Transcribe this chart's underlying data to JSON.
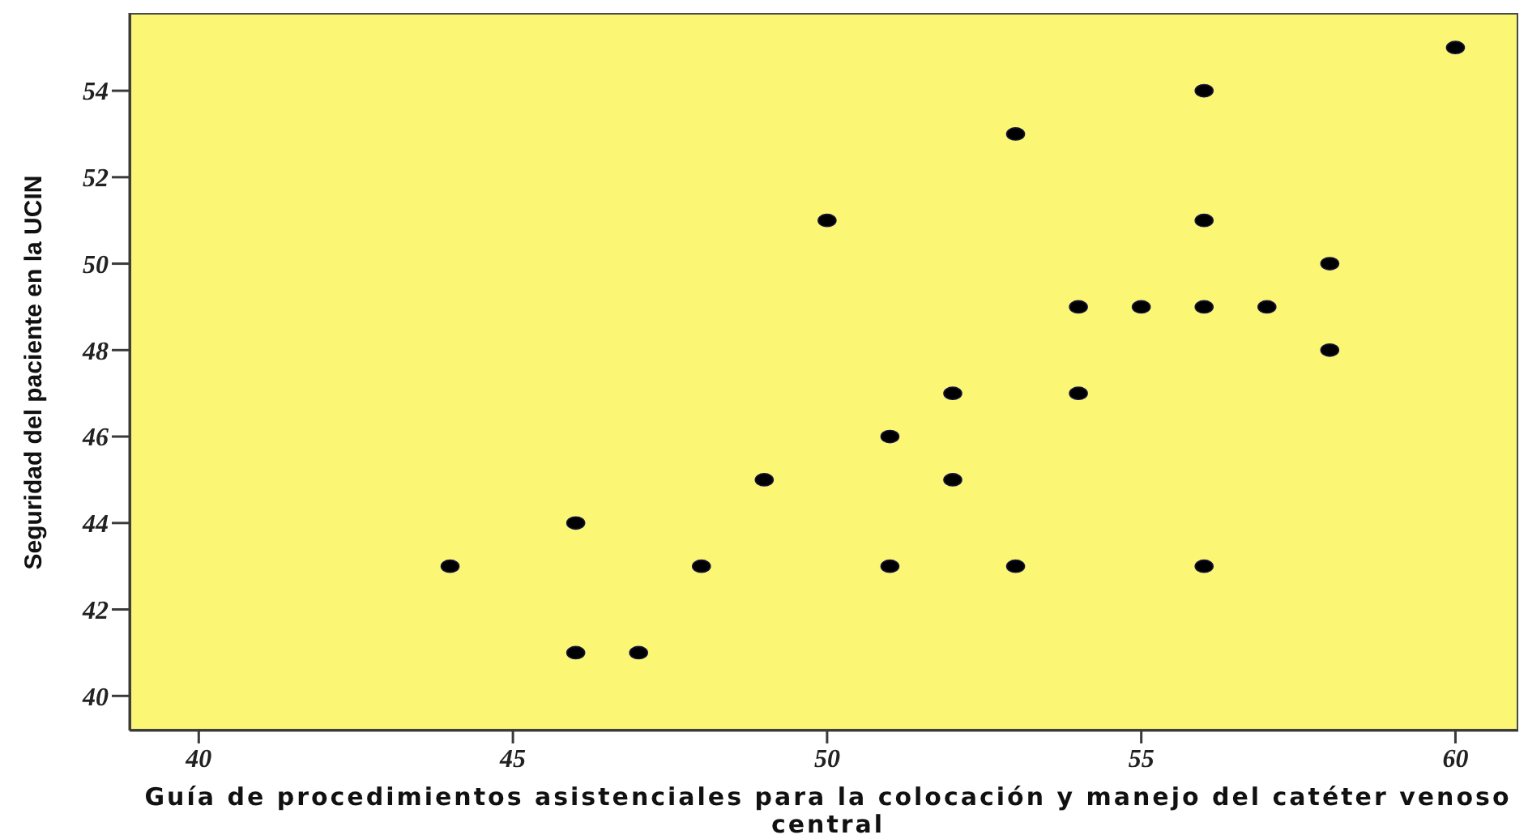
{
  "chart_data": {
    "type": "scatter",
    "xlabel": "Guía de procedimientos asistenciales para la colocación y manejo del catéter venoso central",
    "ylabel": "Seguridad del paciente en la UCIN",
    "x": [
      44,
      46,
      46,
      47,
      48,
      49,
      50,
      51,
      51,
      52,
      52,
      53,
      53,
      54,
      54,
      55,
      56,
      56,
      56,
      56,
      57,
      58,
      58,
      60
    ],
    "values": [
      43,
      44,
      41,
      41,
      43,
      45,
      51,
      46,
      43,
      47,
      45,
      53,
      43,
      49,
      47,
      49,
      54,
      51,
      49,
      43,
      49,
      50,
      48,
      55
    ],
    "color": "#000000",
    "marker": "circle",
    "xlim": [
      38.9,
      61
    ],
    "ylim": [
      39.2,
      55.8
    ],
    "xticks": [
      40,
      45,
      50,
      55,
      60
    ],
    "yticks": [
      40,
      42,
      44,
      46,
      48,
      50,
      52,
      54
    ]
  }
}
